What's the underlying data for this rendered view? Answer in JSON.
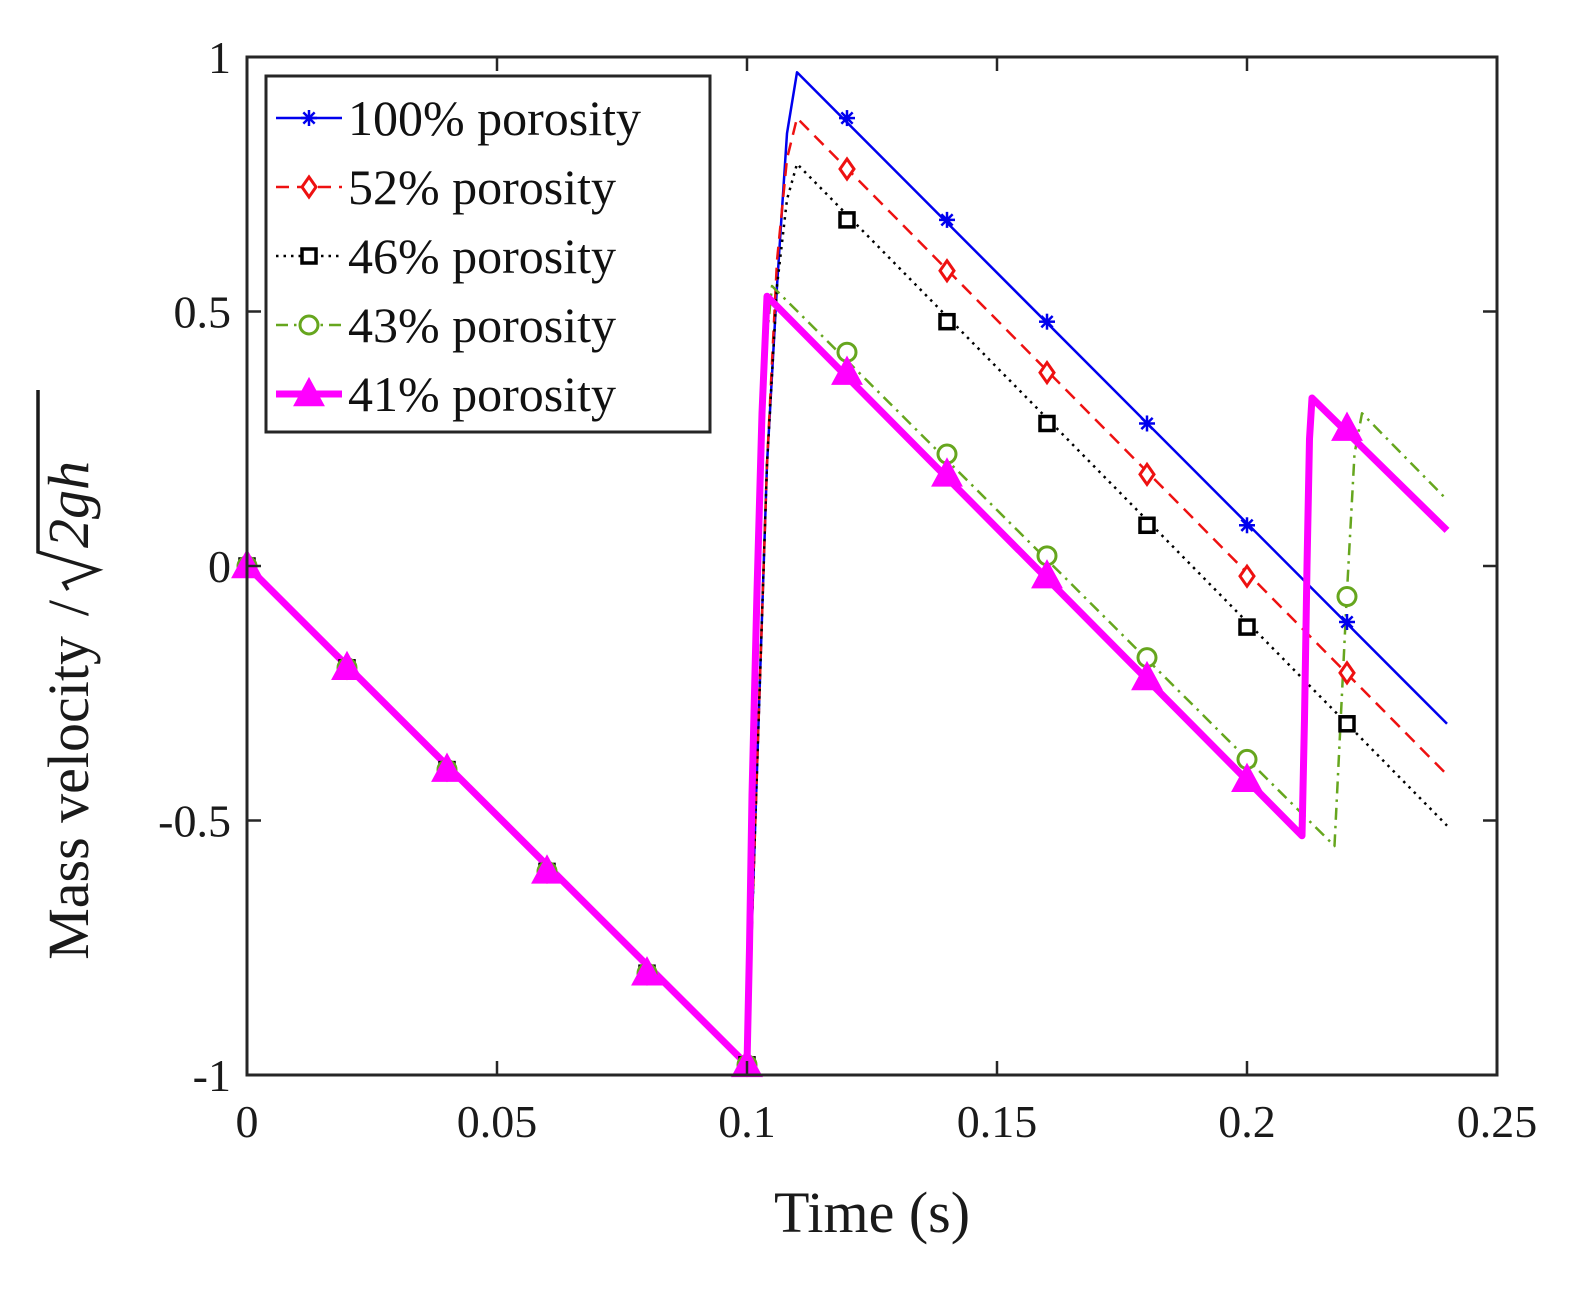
{
  "chart_data": {
    "type": "line",
    "title": "",
    "xlabel": "Time (s)",
    "ylabel_text": "Mass velocity",
    "ylabel_slash": "/",
    "ylabel_radicand": "2gh",
    "xlim": [
      0,
      0.25
    ],
    "ylim": [
      -1,
      1
    ],
    "grid": false,
    "legend_position": "top-left",
    "xticks": [
      0,
      0.05,
      0.1,
      0.15,
      0.2,
      0.25
    ],
    "xtick_labels": [
      "0",
      "0.05",
      "0.1",
      "0.15",
      "0.2",
      "0.25"
    ],
    "yticks": [
      -1,
      -0.5,
      0,
      0.5,
      1
    ],
    "ytick_labels": [
      "-1",
      "-0.5",
      "0",
      "0.5",
      "1"
    ],
    "series": [
      {
        "name": "100% porosity",
        "color": "#0000ee",
        "style": "solid",
        "marker": "asterisk",
        "points": [
          [
            0,
            0
          ],
          [
            0.1,
            -0.98
          ],
          [
            0.1005,
            -0.85
          ],
          [
            0.102,
            -0.4
          ],
          [
            0.104,
            0.2
          ],
          [
            0.106,
            0.55
          ],
          [
            0.108,
            0.85
          ],
          [
            0.11,
            0.97
          ],
          [
            0.24,
            -0.31
          ]
        ],
        "markers": [
          [
            0,
            0
          ],
          [
            0.02,
            -0.2
          ],
          [
            0.04,
            -0.4
          ],
          [
            0.06,
            -0.6
          ],
          [
            0.08,
            -0.8
          ],
          [
            0.1,
            -0.98
          ],
          [
            0.12,
            0.88
          ],
          [
            0.14,
            0.68
          ],
          [
            0.16,
            0.48
          ],
          [
            0.18,
            0.28
          ],
          [
            0.2,
            0.08
          ],
          [
            0.22,
            -0.11
          ]
        ]
      },
      {
        "name": "52% porosity",
        "color": "#ee1111",
        "style": "dashed",
        "marker": "diamond",
        "points": [
          [
            0,
            0
          ],
          [
            0.1,
            -0.98
          ],
          [
            0.1005,
            -0.85
          ],
          [
            0.102,
            -0.4
          ],
          [
            0.104,
            0.2
          ],
          [
            0.106,
            0.6
          ],
          [
            0.108,
            0.8
          ],
          [
            0.11,
            0.88
          ],
          [
            0.24,
            -0.41
          ]
        ],
        "markers": [
          [
            0,
            0
          ],
          [
            0.02,
            -0.2
          ],
          [
            0.04,
            -0.4
          ],
          [
            0.06,
            -0.6
          ],
          [
            0.08,
            -0.8
          ],
          [
            0.1,
            -0.98
          ],
          [
            0.12,
            0.78
          ],
          [
            0.14,
            0.58
          ],
          [
            0.16,
            0.38
          ],
          [
            0.18,
            0.18
          ],
          [
            0.2,
            -0.02
          ],
          [
            0.22,
            -0.21
          ]
        ]
      },
      {
        "name": "46% porosity",
        "color": "#000000",
        "style": "dotted",
        "marker": "square",
        "points": [
          [
            0,
            0
          ],
          [
            0.1,
            -0.98
          ],
          [
            0.1005,
            -0.85
          ],
          [
            0.102,
            -0.4
          ],
          [
            0.104,
            0.2
          ],
          [
            0.106,
            0.55
          ],
          [
            0.108,
            0.72
          ],
          [
            0.11,
            0.79
          ],
          [
            0.24,
            -0.51
          ]
        ],
        "markers": [
          [
            0,
            0
          ],
          [
            0.02,
            -0.2
          ],
          [
            0.04,
            -0.4
          ],
          [
            0.06,
            -0.6
          ],
          [
            0.08,
            -0.8
          ],
          [
            0.1,
            -0.98
          ],
          [
            0.12,
            0.68
          ],
          [
            0.14,
            0.48
          ],
          [
            0.16,
            0.28
          ],
          [
            0.18,
            0.08
          ],
          [
            0.2,
            -0.12
          ],
          [
            0.22,
            -0.31
          ]
        ]
      },
      {
        "name": "43% porosity",
        "color": "#66a61e",
        "style": "dashdot",
        "marker": "circle",
        "points": [
          [
            0,
            0
          ],
          [
            0.1,
            -0.98
          ],
          [
            0.1005,
            -0.8
          ],
          [
            0.101,
            -0.55
          ],
          [
            0.102,
            -0.2
          ],
          [
            0.103,
            0.2
          ],
          [
            0.104,
            0.45
          ],
          [
            0.105,
            0.55
          ],
          [
            0.2175,
            -0.55
          ],
          [
            0.2185,
            -0.35
          ],
          [
            0.22,
            -0.05
          ],
          [
            0.2215,
            0.22
          ],
          [
            0.223,
            0.3
          ],
          [
            0.24,
            0.13
          ]
        ],
        "markers": [
          [
            0,
            0
          ],
          [
            0.02,
            -0.2
          ],
          [
            0.04,
            -0.4
          ],
          [
            0.06,
            -0.6
          ],
          [
            0.08,
            -0.8
          ],
          [
            0.1,
            -0.98
          ],
          [
            0.12,
            0.42
          ],
          [
            0.14,
            0.22
          ],
          [
            0.16,
            0.02
          ],
          [
            0.18,
            -0.18
          ],
          [
            0.2,
            -0.38
          ],
          [
            0.22,
            -0.06
          ]
        ]
      },
      {
        "name": "41% porosity",
        "color": "#ff00ff",
        "style": "solid-thick",
        "marker": "triangle",
        "points": [
          [
            0,
            0
          ],
          [
            0.1,
            -0.98
          ],
          [
            0.1005,
            -0.75
          ],
          [
            0.101,
            -0.45
          ],
          [
            0.102,
            -0.05
          ],
          [
            0.103,
            0.3
          ],
          [
            0.104,
            0.53
          ],
          [
            0.211,
            -0.53
          ],
          [
            0.2115,
            -0.3
          ],
          [
            0.212,
            0.0
          ],
          [
            0.2125,
            0.25
          ],
          [
            0.213,
            0.33
          ],
          [
            0.24,
            0.07
          ]
        ],
        "markers": [
          [
            0,
            0
          ],
          [
            0.02,
            -0.2
          ],
          [
            0.04,
            -0.4
          ],
          [
            0.06,
            -0.6
          ],
          [
            0.08,
            -0.8
          ],
          [
            0.1,
            -0.98
          ],
          [
            0.12,
            0.38
          ],
          [
            0.14,
            0.18
          ],
          [
            0.16,
            -0.02
          ],
          [
            0.18,
            -0.22
          ],
          [
            0.2,
            -0.42
          ],
          [
            0.22,
            0.27
          ]
        ]
      }
    ]
  }
}
